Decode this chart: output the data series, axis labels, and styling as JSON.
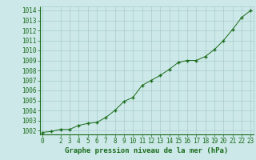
{
  "x": [
    0,
    1,
    2,
    3,
    4,
    5,
    6,
    7,
    8,
    9,
    10,
    11,
    12,
    13,
    14,
    15,
    16,
    17,
    18,
    19,
    20,
    21,
    22,
    23
  ],
  "y": [
    1001.8,
    1001.9,
    1002.1,
    1002.1,
    1002.5,
    1002.7,
    1002.8,
    1003.3,
    1004.0,
    1004.9,
    1005.3,
    1006.5,
    1007.0,
    1007.5,
    1008.1,
    1008.8,
    1009.0,
    1009.0,
    1009.4,
    1010.1,
    1011.0,
    1012.1,
    1013.3,
    1014.0
  ],
  "xlim": [
    -0.3,
    23.3
  ],
  "ylim": [
    1001.6,
    1014.4
  ],
  "yticks": [
    1002,
    1003,
    1004,
    1005,
    1006,
    1007,
    1008,
    1009,
    1010,
    1011,
    1012,
    1013,
    1014
  ],
  "xticks": [
    0,
    2,
    3,
    4,
    5,
    6,
    7,
    8,
    9,
    10,
    11,
    12,
    13,
    14,
    15,
    16,
    17,
    18,
    19,
    20,
    21,
    22,
    23
  ],
  "line_color": "#1a6b1a",
  "marker_color": "#1a6b1a",
  "bg_color": "#cce8e8",
  "grid_color": "#aacccc",
  "xlabel": "Graphe pression niveau de la mer (hPa)",
  "xlabel_fontsize": 6.5,
  "tick_fontsize": 5.5
}
